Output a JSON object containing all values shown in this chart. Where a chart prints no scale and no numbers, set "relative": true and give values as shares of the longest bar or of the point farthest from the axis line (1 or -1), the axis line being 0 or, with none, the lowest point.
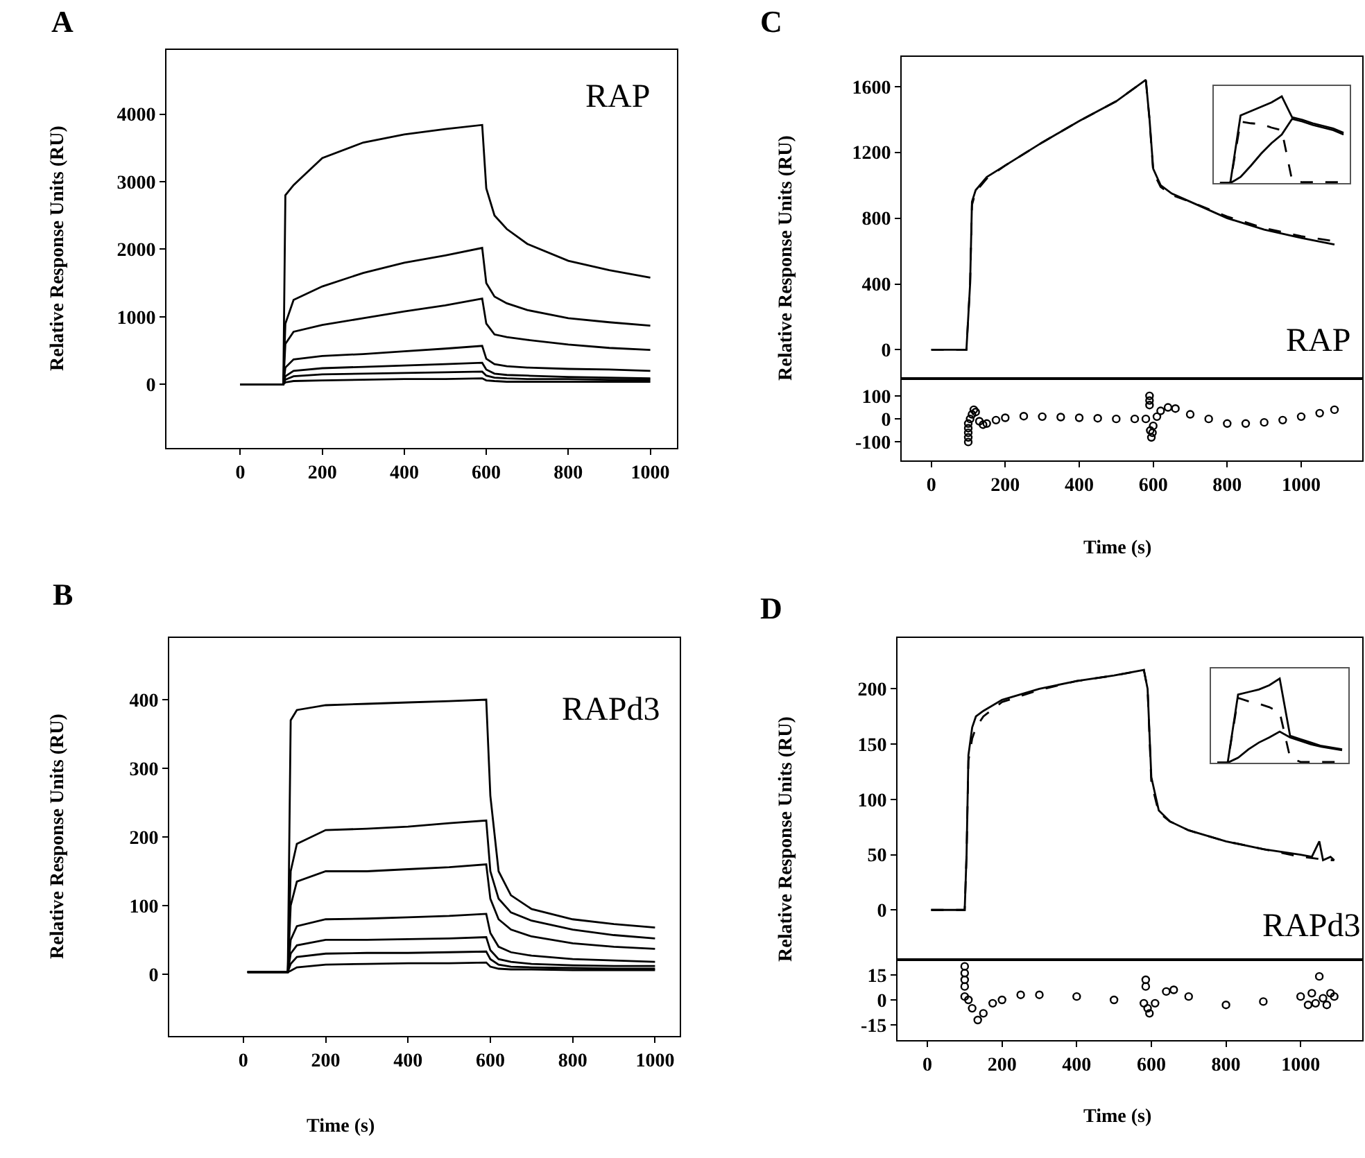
{
  "chart_data": [
    {
      "type": "line",
      "title": "A",
      "annotations": [
        "RAP"
      ],
      "ylabel": "Relative Response Units (RU)",
      "xlim": [
        -180,
        1065
      ],
      "xticks": [
        0,
        200,
        400,
        600,
        800,
        1000
      ],
      "ylim": [
        -940,
        4950
      ],
      "yticks": [
        0,
        1000,
        2000,
        3000,
        4000
      ],
      "grid": false,
      "marker": "none",
      "x": [
        0,
        105,
        110,
        130,
        200,
        300,
        400,
        500,
        590,
        600,
        620,
        650,
        700,
        800,
        900,
        1000
      ],
      "series": [
        {
          "color": "#000000",
          "line_style": "solid",
          "values": [
            0,
            0,
            2800,
            2950,
            3350,
            3580,
            3700,
            3780,
            3840,
            2900,
            2500,
            2300,
            2080,
            1830,
            1690,
            1580
          ]
        },
        {
          "color": "#000000",
          "line_style": "solid",
          "values": [
            0,
            0,
            900,
            1250,
            1450,
            1650,
            1800,
            1910,
            2020,
            1500,
            1300,
            1200,
            1100,
            980,
            920,
            870
          ]
        },
        {
          "color": "#000000",
          "line_style": "solid",
          "values": [
            0,
            0,
            600,
            780,
            880,
            980,
            1080,
            1170,
            1270,
            900,
            740,
            700,
            660,
            590,
            540,
            510
          ]
        },
        {
          "color": "#000000",
          "line_style": "solid",
          "values": [
            0,
            0,
            250,
            370,
            420,
            450,
            490,
            530,
            570,
            380,
            300,
            270,
            250,
            230,
            220,
            200
          ]
        },
        {
          "color": "#000000",
          "line_style": "solid",
          "values": [
            0,
            0,
            120,
            200,
            240,
            260,
            280,
            300,
            320,
            220,
            160,
            140,
            130,
            110,
            100,
            90
          ]
        },
        {
          "color": "#000000",
          "line_style": "solid",
          "values": [
            0,
            0,
            70,
            120,
            150,
            160,
            170,
            180,
            190,
            130,
            100,
            90,
            80,
            80,
            70,
            70
          ]
        },
        {
          "color": "#000000",
          "line_style": "solid",
          "values": [
            0,
            0,
            30,
            50,
            60,
            70,
            80,
            80,
            90,
            60,
            50,
            40,
            40,
            40,
            40,
            40
          ]
        }
      ]
    },
    {
      "type": "line",
      "title": "B",
      "annotations": [
        "RAPd3"
      ],
      "xlabel": "Time (s)",
      "ylabel": "Relative Response Units (RU)",
      "xlim": [
        -180,
        1060
      ],
      "xticks": [
        0,
        200,
        400,
        600,
        800,
        1000
      ],
      "ylim": [
        -90,
        490
      ],
      "yticks": [
        0,
        100,
        200,
        300,
        400
      ],
      "grid": false,
      "marker": "none",
      "x": [
        10,
        108,
        115,
        130,
        200,
        300,
        400,
        500,
        590,
        600,
        620,
        650,
        700,
        800,
        900,
        1000
      ],
      "series": [
        {
          "color": "#000000",
          "line_style": "solid",
          "values": [
            3,
            3,
            370,
            385,
            392,
            394,
            396,
            398,
            400,
            260,
            150,
            115,
            95,
            80,
            73,
            68
          ]
        },
        {
          "color": "#000000",
          "line_style": "solid",
          "values": [
            3,
            3,
            150,
            190,
            210,
            212,
            215,
            220,
            224,
            150,
            110,
            90,
            78,
            65,
            57,
            52
          ]
        },
        {
          "color": "#000000",
          "line_style": "solid",
          "values": [
            3,
            3,
            100,
            135,
            150,
            150,
            153,
            156,
            160,
            110,
            80,
            65,
            55,
            45,
            40,
            37
          ]
        },
        {
          "color": "#000000",
          "line_style": "solid",
          "values": [
            3,
            3,
            50,
            70,
            80,
            81,
            83,
            85,
            88,
            60,
            40,
            32,
            27,
            22,
            20,
            18
          ]
        },
        {
          "color": "#000000",
          "line_style": "solid",
          "values": [
            3,
            3,
            30,
            42,
            50,
            50,
            51,
            52,
            54,
            35,
            22,
            18,
            15,
            13,
            12,
            12
          ]
        },
        {
          "color": "#000000",
          "line_style": "solid",
          "values": [
            3,
            3,
            15,
            25,
            30,
            31,
            31,
            32,
            33,
            22,
            14,
            11,
            10,
            9,
            8,
            8
          ]
        },
        {
          "color": "#000000",
          "line_style": "solid",
          "values": [
            3,
            3,
            5,
            10,
            14,
            15,
            16,
            16,
            17,
            11,
            8,
            7,
            7,
            6,
            6,
            6
          ]
        }
      ]
    },
    {
      "type": "line",
      "title": "C",
      "annotations": [
        "RAP"
      ],
      "ylabel": "Relative Response Units (RU)",
      "xlim": [
        -80,
        1165
      ],
      "xticks": [
        0,
        200,
        400,
        600,
        800,
        1000
      ],
      "ylim": [
        -175,
        1780
      ],
      "yticks": [
        0,
        400,
        800,
        1200,
        1600
      ],
      "tick_labels": "y",
      "grid": false,
      "marker": "none",
      "x": [
        0,
        95,
        105,
        110,
        120,
        150,
        200,
        300,
        400,
        500,
        580,
        590,
        600,
        620,
        650,
        700,
        800,
        900,
        1000,
        1090
      ],
      "series": [
        {
          "color": "#000000",
          "line_style": "solid",
          "values": [
            0,
            0,
            400,
            900,
            970,
            1050,
            1120,
            1260,
            1390,
            1510,
            1640,
            1400,
            1100,
            1000,
            950,
            900,
            800,
            730,
            680,
            640
          ]
        },
        {
          "color": "#000000",
          "line_style": "dashed",
          "values": [
            0,
            0,
            400,
            880,
            960,
            1040,
            1120,
            1260,
            1390,
            1510,
            1640,
            1400,
            1080,
            990,
            940,
            900,
            810,
            740,
            690,
            660
          ]
        }
      ]
    },
    {
      "type": "scatter",
      "xlabel": "Time (s)",
      "xlim": [
        -80,
        1165
      ],
      "xticks": [
        0,
        200,
        400,
        600,
        800,
        1000
      ],
      "ylim": [
        -180,
        175
      ],
      "yticks": [
        100,
        0,
        -100
      ],
      "grid": false,
      "marker": "circle",
      "x": [
        100,
        100,
        100,
        100,
        100,
        105,
        110,
        115,
        120,
        130,
        140,
        150,
        175,
        200,
        250,
        300,
        350,
        400,
        450,
        500,
        550,
        580,
        590,
        590,
        590,
        592,
        595,
        598,
        600,
        610,
        620,
        640,
        660,
        700,
        750,
        800,
        850,
        900,
        950,
        1000,
        1050,
        1090
      ],
      "series": [
        {
          "color": "#000000",
          "values": [
            -100,
            -80,
            -60,
            -40,
            -20,
            0,
            20,
            40,
            30,
            -10,
            -25,
            -20,
            -5,
            5,
            12,
            10,
            8,
            5,
            3,
            0,
            0,
            0,
            100,
            80,
            60,
            -50,
            -80,
            -60,
            -30,
            10,
            35,
            50,
            45,
            20,
            0,
            -20,
            -20,
            -15,
            -5,
            10,
            25,
            40
          ]
        }
      ]
    },
    {
      "type": "line",
      "relative": true,
      "tick_labels": false,
      "grid": false,
      "marker": "none",
      "categories": [
        null,
        null,
        null,
        null,
        null,
        null,
        null,
        null,
        null,
        null,
        null,
        null,
        null
      ],
      "series": [
        {
          "color": "#000000",
          "line_style": "solid",
          "values": [
            0,
            0,
            0.78,
            0.83,
            0.88,
            0.93,
            1,
            0.76,
            0.73,
            0.69,
            0.66,
            0.63,
            0.58
          ]
        },
        {
          "color": "#000000",
          "line_style": "dashed",
          "values": [
            0,
            0,
            0.71,
            0.69,
            0.68,
            0.64,
            0.61,
            0.03,
            0.01,
            0.01,
            0.01,
            0.01,
            0.01
          ]
        },
        {
          "color": "#000000",
          "line_style": "solid",
          "values": [
            0,
            0,
            0.07,
            0.2,
            0.34,
            0.46,
            0.56,
            0.74,
            0.71,
            0.67,
            0.64,
            0.61,
            0.56
          ]
        }
      ]
    },
    {
      "type": "line",
      "title": "D",
      "annotations": [
        "RAPd3"
      ],
      "ylabel": "Relative Response Units (RU)",
      "xlim": [
        -80,
        1165
      ],
      "xticks": [
        0,
        200,
        400,
        600,
        800,
        1000
      ],
      "ylim": [
        -45,
        246
      ],
      "yticks": [
        0,
        50,
        100,
        150,
        200
      ],
      "tick_labels": "y",
      "grid": false,
      "marker": "none",
      "x": [
        10,
        100,
        105,
        110,
        120,
        130,
        150,
        200,
        300,
        400,
        500,
        580,
        590,
        600,
        620,
        650,
        700,
        800,
        900,
        1000,
        1030,
        1050,
        1060,
        1080,
        1090
      ],
      "series": [
        {
          "color": "#000000",
          "line_style": "solid",
          "values": [
            0,
            0,
            50,
            140,
            165,
            175,
            180,
            190,
            200,
            207,
            212,
            217,
            200,
            120,
            90,
            80,
            72,
            62,
            55,
            50,
            48,
            62,
            45,
            48,
            45
          ]
        },
        {
          "color": "#000000",
          "line_style": "dashed",
          "values": [
            0,
            0,
            50,
            135,
            155,
            165,
            175,
            188,
            199,
            207,
            212,
            217,
            200,
            115,
            88,
            80,
            72,
            62,
            55,
            48,
            47,
            46,
            46,
            45,
            45
          ]
        }
      ]
    },
    {
      "type": "scatter",
      "xlabel": "Time (s)",
      "xlim": [
        -80,
        1165
      ],
      "xticks": [
        0,
        200,
        400,
        600,
        800,
        1000
      ],
      "ylim": [
        -24,
        24
      ],
      "yticks": [
        15,
        0,
        -15
      ],
      "grid": false,
      "marker": "circle",
      "x": [
        100,
        100,
        100,
        100,
        100,
        110,
        120,
        135,
        150,
        175,
        200,
        250,
        300,
        400,
        500,
        580,
        585,
        585,
        590,
        595,
        610,
        640,
        660,
        700,
        800,
        900,
        1000,
        1020,
        1030,
        1040,
        1050,
        1060,
        1070,
        1080,
        1090
      ],
      "series": [
        {
          "color": "#000000",
          "values": [
            20,
            16,
            12,
            8,
            2,
            0,
            -5,
            -12,
            -8,
            -2,
            0,
            3,
            3,
            2,
            0,
            -2,
            12,
            8,
            -5,
            -8,
            -2,
            5,
            6,
            2,
            -3,
            -1,
            2,
            -3,
            4,
            -2,
            14,
            1,
            -3,
            4,
            2
          ]
        }
      ]
    },
    {
      "type": "line",
      "relative": true,
      "tick_labels": false,
      "grid": false,
      "marker": "none",
      "categories": [
        null,
        null,
        null,
        null,
        null,
        null,
        null,
        null,
        null,
        null,
        null,
        null,
        null
      ],
      "series": [
        {
          "color": "#000000",
          "line_style": "solid",
          "values": [
            0,
            0,
            0.81,
            0.84,
            0.87,
            0.92,
            1,
            0.32,
            0.28,
            0.24,
            0.2,
            0.18,
            0.16
          ]
        },
        {
          "color": "#000000",
          "line_style": "dashed",
          "values": [
            0,
            0,
            0.77,
            0.73,
            0.7,
            0.66,
            0.6,
            0.06,
            0.01,
            0.01,
            0.01,
            0.01,
            0.01
          ]
        },
        {
          "color": "#000000",
          "line_style": "solid",
          "values": [
            0,
            0,
            0.06,
            0.16,
            0.24,
            0.3,
            0.37,
            0.3,
            0.26,
            0.22,
            0.19,
            0.17,
            0.15
          ]
        }
      ]
    }
  ]
}
